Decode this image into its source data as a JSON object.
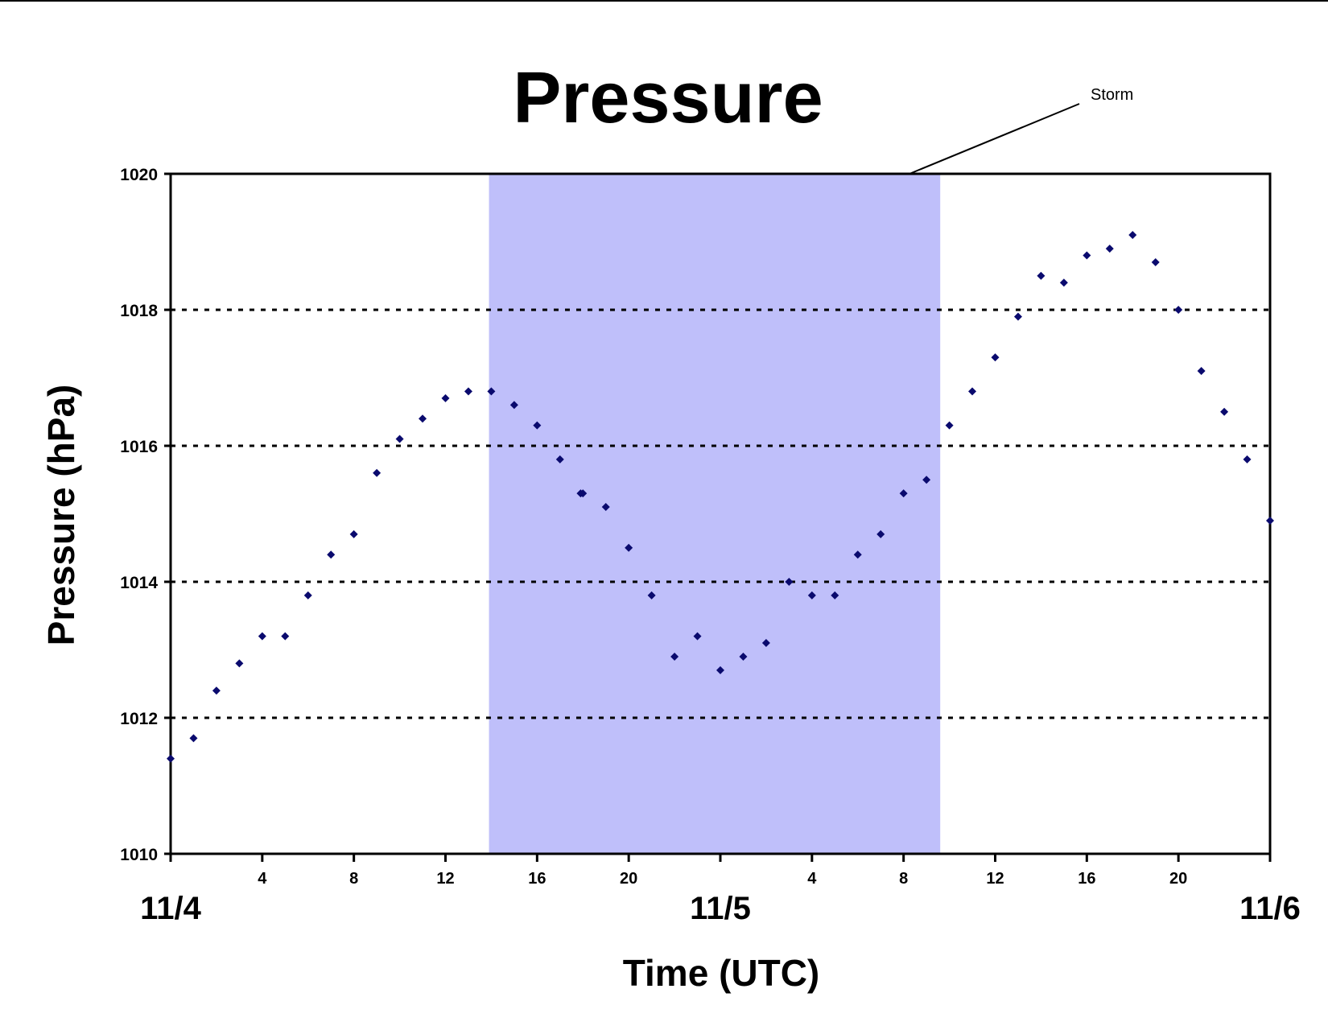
{
  "chart_data": {
    "type": "scatter",
    "title": "Pressure",
    "xlabel": "Time (UTC)",
    "ylabel": "Pressure (hPa)",
    "ylim": [
      1010,
      1020
    ],
    "yticks": [
      1010,
      1012,
      1014,
      1016,
      1018,
      1020
    ],
    "xlim_hours": [
      0,
      48
    ],
    "hour_tick_labels": [
      {
        "hour": 4,
        "label": "4"
      },
      {
        "hour": 8,
        "label": "8"
      },
      {
        "hour": 12,
        "label": "12"
      },
      {
        "hour": 16,
        "label": "16"
      },
      {
        "hour": 20,
        "label": "20"
      },
      {
        "hour": 28,
        "label": "4"
      },
      {
        "hour": 32,
        "label": "8"
      },
      {
        "hour": 36,
        "label": "12"
      },
      {
        "hour": 40,
        "label": "16"
      },
      {
        "hour": 44,
        "label": "20"
      }
    ],
    "day_labels": [
      {
        "hour": 0,
        "label": "11/4"
      },
      {
        "hour": 24,
        "label": "11/5"
      },
      {
        "hour": 48,
        "label": "11/6"
      }
    ],
    "grid": "horizontal dotted",
    "shaded_region": {
      "label": "Storm",
      "start_hour": 13.9,
      "end_hour": 33.6,
      "color": "#bfbffa"
    },
    "marker_color": "#0a0a6e",
    "series": [
      {
        "x": [
          0,
          1,
          2,
          3,
          4,
          5,
          6,
          7,
          8,
          9,
          10,
          11,
          12,
          13,
          14,
          15,
          16,
          17,
          17.9,
          18,
          19,
          20,
          21,
          22,
          23,
          24,
          25,
          26,
          27,
          28,
          29,
          30,
          31,
          32,
          33,
          34,
          35,
          36,
          37,
          38,
          39,
          40,
          41,
          42,
          43,
          44,
          45,
          46,
          47,
          48
        ],
        "values": [
          1011.4,
          1011.7,
          1012.4,
          1012.8,
          1013.2,
          1013.2,
          1013.8,
          1014.4,
          1014.7,
          1015.6,
          1016.1,
          1016.4,
          1016.7,
          1016.8,
          1016.8,
          1016.6,
          1016.3,
          1015.8,
          1015.3,
          1015.3,
          1015.1,
          1014.5,
          1013.8,
          1012.9,
          1013.2,
          1012.7,
          1012.9,
          1013.1,
          1014.0,
          1013.8,
          1013.8,
          1014.4,
          1014.7,
          1015.3,
          1015.5,
          1016.3,
          1016.8,
          1017.3,
          1017.9,
          1018.5,
          1018.4,
          1018.8,
          1018.9,
          1019.1,
          1018.7,
          1018.0,
          1017.1,
          1016.5,
          1015.8,
          1014.9
        ]
      }
    ]
  }
}
